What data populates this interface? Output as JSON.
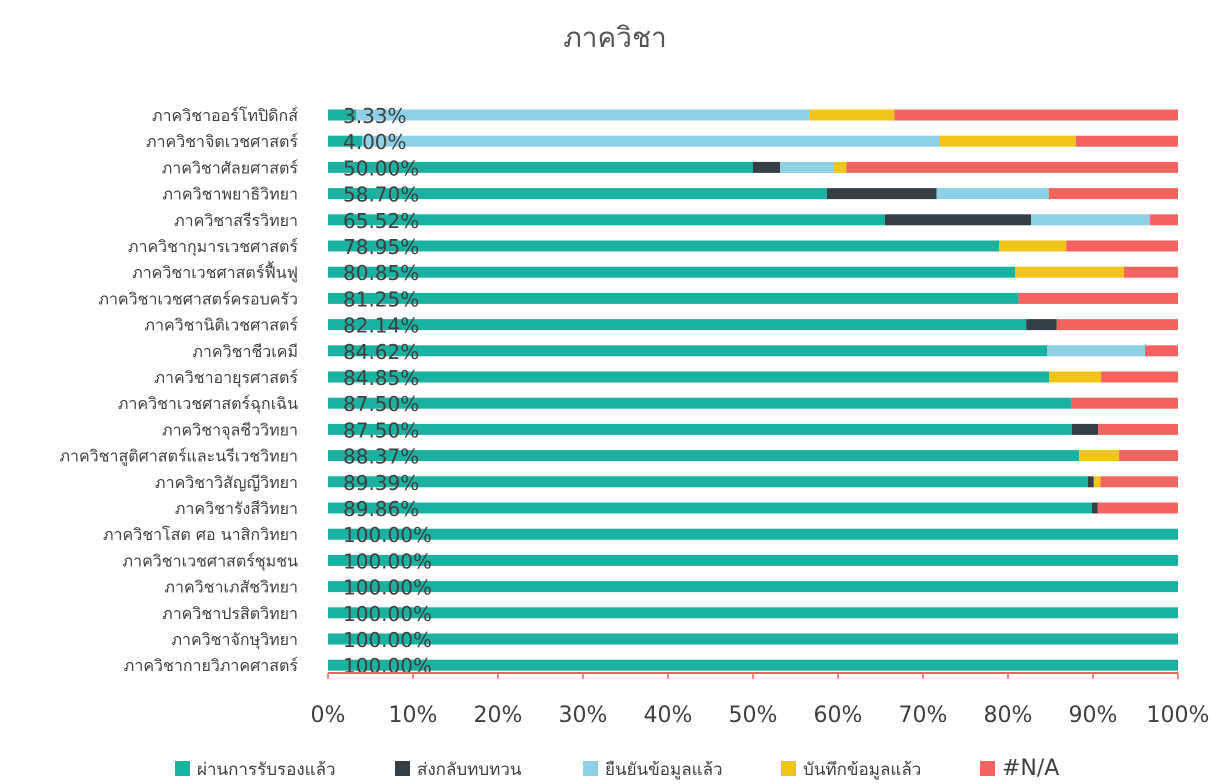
{
  "chart_data": {
    "type": "bar",
    "orientation": "horizontal",
    "stacked": "percent",
    "title": "ภาควิชา",
    "categories": [
      "ภาควิชาออร์โทปิดิกส์",
      "ภาควิชาจิตเวชศาสตร์",
      "ภาควิชาศัลยศาสตร์",
      "ภาควิชาพยาธิวิทยา",
      "ภาควิชาสรีรวิทยา",
      "ภาควิชากุมารเวชศาสตร์",
      "ภาควิชาเวชศาสตร์ฟื้นฟู",
      "ภาควิชาเวชศาสตร์ครอบครัว",
      "ภาควิชานิติเวชศาสตร์",
      "ภาควิชาชีวเคมี",
      "ภาควิชาอายุรศาสตร์",
      "ภาควิชาเวชศาสตร์ฉุกเฉิน",
      "ภาควิชาจุลชีววิทยา",
      "ภาควิชาสูติศาสตร์และนรีเวชวิทยา",
      "ภาควิชาวิสัญญีวิทยา",
      "ภาควิชารังสีวิทยา",
      "ภาควิชาโสต ศอ นาสิกวิทยา",
      "ภาควิชาเวชศาสตร์ชุมชน",
      "ภาควิชาเภสัชวิทยา",
      "ภาควิชาปรสิตวิทยา",
      "ภาควิชาจักษุวิทยา",
      "ภาควิชากายวิภาคศาสตร์"
    ],
    "data_labels": [
      "3.33%",
      "4.00%",
      "50.00%",
      "58.70%",
      "65.52%",
      "78.95%",
      "80.85%",
      "81.25%",
      "82.14%",
      "84.62%",
      "84.85%",
      "87.50%",
      "87.50%",
      "88.37%",
      "89.39%",
      "89.86%",
      "100.00%",
      "100.00%",
      "100.00%",
      "100.00%",
      "100.00%",
      "100.00%"
    ],
    "series": [
      {
        "name": "ผ่านการรับรองแล้ว",
        "color": "#19b2a0",
        "values": [
          3.33,
          4.0,
          50.0,
          58.7,
          65.52,
          78.95,
          80.85,
          81.25,
          82.14,
          84.62,
          84.85,
          87.5,
          87.5,
          88.37,
          89.39,
          89.86,
          100,
          100,
          100,
          100,
          100,
          100
        ]
      },
      {
        "name": "ส่งกลับทบทวน",
        "color": "#363f45",
        "values": [
          0,
          0,
          3.2,
          12.9,
          17.2,
          0,
          0,
          0,
          3.6,
          0,
          0,
          0,
          3.1,
          0,
          0.7,
          0.7,
          0,
          0,
          0,
          0,
          0,
          0
        ]
      },
      {
        "name": "ยืนยันข้อมูลแล้ว",
        "color": "#8ed0e5",
        "values": [
          53.3,
          68.0,
          6.3,
          13.2,
          14.0,
          0,
          0,
          0,
          0,
          11.5,
          0,
          0,
          0,
          0,
          0,
          0,
          0,
          0,
          0,
          0,
          0,
          0
        ]
      },
      {
        "name": "บันทึกข้อมูลแล้ว",
        "color": "#f0c419",
        "values": [
          10.0,
          16.0,
          1.5,
          0,
          0,
          7.9,
          12.8,
          0,
          0,
          0,
          6.1,
          0,
          0,
          4.7,
          0.8,
          0,
          0,
          0,
          0,
          0,
          0,
          0
        ]
      },
      {
        "name": "#N/A",
        "color": "#f4635f",
        "values": [
          33.37,
          12.0,
          39.0,
          15.2,
          3.28,
          13.15,
          6.35,
          18.75,
          14.26,
          3.88,
          9.05,
          12.5,
          9.4,
          6.93,
          9.11,
          9.44,
          0,
          0,
          0,
          0,
          0,
          0
        ]
      }
    ],
    "x_ticks": [
      "0%",
      "10%",
      "20%",
      "30%",
      "40%",
      "50%",
      "60%",
      "70%",
      "80%",
      "90%",
      "100%"
    ],
    "xlim": [
      0,
      100
    ],
    "grid": false,
    "legend_position": "bottom"
  }
}
